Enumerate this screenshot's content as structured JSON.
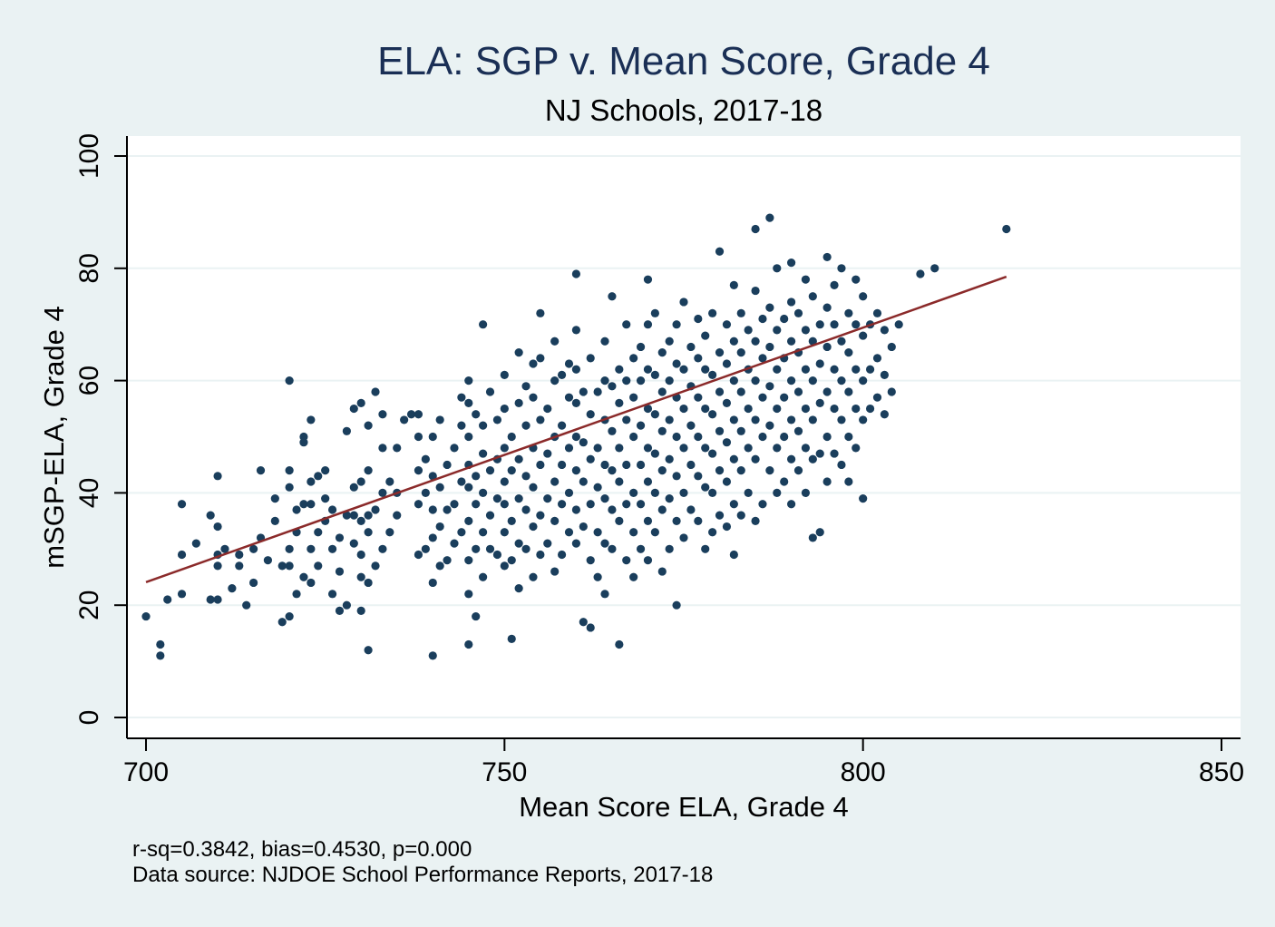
{
  "chart_data": {
    "type": "scatter",
    "title": "ELA: SGP v. Mean Score, Grade 4",
    "subtitle": "NJ Schools, 2017-18",
    "xlabel": "Mean Score ELA, Grade 4",
    "ylabel": "mSGP-ELA, Grade 4",
    "xlim": [
      700,
      850
    ],
    "ylim": [
      0,
      100
    ],
    "x_ticks": [
      "700",
      "750",
      "800",
      "850"
    ],
    "y_ticks": [
      "0",
      "20",
      "40",
      "60",
      "80",
      "100"
    ],
    "grid": "horizontal",
    "colors": {
      "points": "#1a3e5c",
      "fit_line": "#8b2a2a",
      "title": "#1a2f55",
      "background": "#eaf2f3",
      "plot_background": "#ffffff"
    },
    "fit_line": {
      "x": [
        700,
        820
      ],
      "y": [
        24.1,
        78.5
      ]
    },
    "notes": [
      "r-sq=0.3842, bias=0.4530, p=0.000",
      "Data source: NJDOE School Performance Reports, 2017-18"
    ],
    "points": [
      [
        700,
        18
      ],
      [
        702,
        13
      ],
      [
        702,
        11
      ],
      [
        703,
        21
      ],
      [
        705,
        22
      ],
      [
        705,
        29
      ],
      [
        705,
        38
      ],
      [
        707,
        31
      ],
      [
        709,
        21
      ],
      [
        709,
        36
      ],
      [
        710,
        21
      ],
      [
        710,
        27
      ],
      [
        710,
        29
      ],
      [
        710,
        34
      ],
      [
        710,
        43
      ],
      [
        711,
        30
      ],
      [
        712,
        23
      ],
      [
        713,
        27
      ],
      [
        713,
        29
      ],
      [
        714,
        20
      ],
      [
        715,
        24
      ],
      [
        715,
        30
      ],
      [
        716,
        32
      ],
      [
        716,
        44
      ],
      [
        717,
        28
      ],
      [
        718,
        35
      ],
      [
        718,
        39
      ],
      [
        719,
        17
      ],
      [
        719,
        27
      ],
      [
        720,
        18
      ],
      [
        720,
        27
      ],
      [
        720,
        30
      ],
      [
        720,
        41
      ],
      [
        720,
        44
      ],
      [
        720,
        60
      ],
      [
        721,
        22
      ],
      [
        721,
        33
      ],
      [
        721,
        37
      ],
      [
        722,
        25
      ],
      [
        722,
        38
      ],
      [
        722,
        49
      ],
      [
        722,
        50
      ],
      [
        723,
        24
      ],
      [
        723,
        30
      ],
      [
        723,
        38
      ],
      [
        723,
        42
      ],
      [
        723,
        53
      ],
      [
        724,
        27
      ],
      [
        724,
        33
      ],
      [
        724,
        43
      ],
      [
        725,
        35
      ],
      [
        725,
        39
      ],
      [
        725,
        44
      ],
      [
        726,
        22
      ],
      [
        726,
        30
      ],
      [
        726,
        37
      ],
      [
        727,
        19
      ],
      [
        727,
        26
      ],
      [
        727,
        32
      ],
      [
        728,
        20
      ],
      [
        728,
        36
      ],
      [
        728,
        51
      ],
      [
        729,
        31
      ],
      [
        729,
        36
      ],
      [
        729,
        41
      ],
      [
        729,
        55
      ],
      [
        730,
        19
      ],
      [
        730,
        25
      ],
      [
        730,
        29
      ],
      [
        730,
        35
      ],
      [
        730,
        42
      ],
      [
        730,
        56
      ],
      [
        731,
        12
      ],
      [
        731,
        24
      ],
      [
        731,
        33
      ],
      [
        731,
        36
      ],
      [
        731,
        44
      ],
      [
        731,
        52
      ],
      [
        732,
        27
      ],
      [
        732,
        37
      ],
      [
        732,
        58
      ],
      [
        733,
        30
      ],
      [
        733,
        40
      ],
      [
        733,
        48
      ],
      [
        733,
        54
      ],
      [
        734,
        33
      ],
      [
        734,
        42
      ],
      [
        735,
        36
      ],
      [
        735,
        40
      ],
      [
        735,
        48
      ],
      [
        736,
        53
      ],
      [
        737,
        54
      ],
      [
        738,
        29
      ],
      [
        738,
        38
      ],
      [
        738,
        44
      ],
      [
        738,
        50
      ],
      [
        738,
        54
      ],
      [
        739,
        30
      ],
      [
        739,
        40
      ],
      [
        739,
        46
      ],
      [
        740,
        11
      ],
      [
        740,
        24
      ],
      [
        740,
        32
      ],
      [
        740,
        37
      ],
      [
        740,
        43
      ],
      [
        740,
        50
      ],
      [
        741,
        27
      ],
      [
        741,
        34
      ],
      [
        741,
        41
      ],
      [
        741,
        53
      ],
      [
        742,
        28
      ],
      [
        742,
        37
      ],
      [
        742,
        45
      ],
      [
        743,
        31
      ],
      [
        743,
        38
      ],
      [
        743,
        48
      ],
      [
        744,
        33
      ],
      [
        744,
        42
      ],
      [
        744,
        52
      ],
      [
        744,
        57
      ],
      [
        745,
        13
      ],
      [
        745,
        22
      ],
      [
        745,
        28
      ],
      [
        745,
        35
      ],
      [
        745,
        41
      ],
      [
        745,
        45
      ],
      [
        745,
        50
      ],
      [
        745,
        56
      ],
      [
        745,
        60
      ],
      [
        746,
        18
      ],
      [
        746,
        30
      ],
      [
        746,
        38
      ],
      [
        746,
        43
      ],
      [
        746,
        54
      ],
      [
        747,
        25
      ],
      [
        747,
        33
      ],
      [
        747,
        40
      ],
      [
        747,
        47
      ],
      [
        747,
        52
      ],
      [
        747,
        70
      ],
      [
        748,
        30
      ],
      [
        748,
        36
      ],
      [
        748,
        44
      ],
      [
        748,
        58
      ],
      [
        749,
        29
      ],
      [
        749,
        39
      ],
      [
        749,
        46
      ],
      [
        749,
        53
      ],
      [
        750,
        27
      ],
      [
        750,
        33
      ],
      [
        750,
        38
      ],
      [
        750,
        42
      ],
      [
        750,
        48
      ],
      [
        750,
        55
      ],
      [
        750,
        61
      ],
      [
        751,
        14
      ],
      [
        751,
        28
      ],
      [
        751,
        35
      ],
      [
        751,
        44
      ],
      [
        751,
        50
      ],
      [
        752,
        23
      ],
      [
        752,
        31
      ],
      [
        752,
        39
      ],
      [
        752,
        46
      ],
      [
        752,
        56
      ],
      [
        752,
        65
      ],
      [
        753,
        30
      ],
      [
        753,
        37
      ],
      [
        753,
        43
      ],
      [
        753,
        52
      ],
      [
        753,
        59
      ],
      [
        754,
        25
      ],
      [
        754,
        34
      ],
      [
        754,
        41
      ],
      [
        754,
        48
      ],
      [
        754,
        57
      ],
      [
        754,
        63
      ],
      [
        755,
        29
      ],
      [
        755,
        36
      ],
      [
        755,
        45
      ],
      [
        755,
        53
      ],
      [
        755,
        64
      ],
      [
        755,
        72
      ],
      [
        756,
        31
      ],
      [
        756,
        39
      ],
      [
        756,
        47
      ],
      [
        756,
        55
      ],
      [
        757,
        26
      ],
      [
        757,
        35
      ],
      [
        757,
        42
      ],
      [
        757,
        50
      ],
      [
        757,
        60
      ],
      [
        757,
        67
      ],
      [
        758,
        29
      ],
      [
        758,
        38
      ],
      [
        758,
        45
      ],
      [
        758,
        52
      ],
      [
        758,
        61
      ],
      [
        759,
        33
      ],
      [
        759,
        40
      ],
      [
        759,
        48
      ],
      [
        759,
        57
      ],
      [
        759,
        63
      ],
      [
        760,
        31
      ],
      [
        760,
        37
      ],
      [
        760,
        44
      ],
      [
        760,
        50
      ],
      [
        760,
        56
      ],
      [
        760,
        62
      ],
      [
        760,
        69
      ],
      [
        760,
        79
      ],
      [
        761,
        17
      ],
      [
        761,
        34
      ],
      [
        761,
        42
      ],
      [
        761,
        49
      ],
      [
        761,
        58
      ],
      [
        762,
        16
      ],
      [
        762,
        28
      ],
      [
        762,
        38
      ],
      [
        762,
        46
      ],
      [
        762,
        54
      ],
      [
        762,
        64
      ],
      [
        763,
        25
      ],
      [
        763,
        33
      ],
      [
        763,
        41
      ],
      [
        763,
        48
      ],
      [
        763,
        58
      ],
      [
        764,
        22
      ],
      [
        764,
        31
      ],
      [
        764,
        39
      ],
      [
        764,
        45
      ],
      [
        764,
        53
      ],
      [
        764,
        60
      ],
      [
        764,
        67
      ],
      [
        765,
        30
      ],
      [
        765,
        37
      ],
      [
        765,
        44
      ],
      [
        765,
        51
      ],
      [
        765,
        59
      ],
      [
        765,
        75
      ],
      [
        766,
        13
      ],
      [
        766,
        35
      ],
      [
        766,
        42
      ],
      [
        766,
        48
      ],
      [
        766,
        56
      ],
      [
        766,
        62
      ],
      [
        767,
        28
      ],
      [
        767,
        38
      ],
      [
        767,
        45
      ],
      [
        767,
        53
      ],
      [
        767,
        60
      ],
      [
        767,
        70
      ],
      [
        768,
        25
      ],
      [
        768,
        33
      ],
      [
        768,
        40
      ],
      [
        768,
        50
      ],
      [
        768,
        57
      ],
      [
        768,
        64
      ],
      [
        769,
        30
      ],
      [
        769,
        38
      ],
      [
        769,
        45
      ],
      [
        769,
        52
      ],
      [
        769,
        60
      ],
      [
        769,
        66
      ],
      [
        770,
        28
      ],
      [
        770,
        35
      ],
      [
        770,
        42
      ],
      [
        770,
        48
      ],
      [
        770,
        55
      ],
      [
        770,
        62
      ],
      [
        770,
        70
      ],
      [
        770,
        78
      ],
      [
        771,
        33
      ],
      [
        771,
        40
      ],
      [
        771,
        47
      ],
      [
        771,
        54
      ],
      [
        771,
        61
      ],
      [
        771,
        72
      ],
      [
        772,
        26
      ],
      [
        772,
        37
      ],
      [
        772,
        44
      ],
      [
        772,
        51
      ],
      [
        772,
        58
      ],
      [
        772,
        65
      ],
      [
        773,
        30
      ],
      [
        773,
        39
      ],
      [
        773,
        46
      ],
      [
        773,
        53
      ],
      [
        773,
        60
      ],
      [
        773,
        67
      ],
      [
        774,
        20
      ],
      [
        774,
        35
      ],
      [
        774,
        43
      ],
      [
        774,
        50
      ],
      [
        774,
        57
      ],
      [
        774,
        63
      ],
      [
        774,
        70
      ],
      [
        775,
        32
      ],
      [
        775,
        40
      ],
      [
        775,
        48
      ],
      [
        775,
        55
      ],
      [
        775,
        62
      ],
      [
        775,
        74
      ],
      [
        776,
        37
      ],
      [
        776,
        45
      ],
      [
        776,
        52
      ],
      [
        776,
        59
      ],
      [
        776,
        66
      ],
      [
        777,
        35
      ],
      [
        777,
        43
      ],
      [
        777,
        50
      ],
      [
        777,
        57
      ],
      [
        777,
        64
      ],
      [
        777,
        71
      ],
      [
        778,
        30
      ],
      [
        778,
        41
      ],
      [
        778,
        48
      ],
      [
        778,
        55
      ],
      [
        778,
        62
      ],
      [
        778,
        68
      ],
      [
        779,
        33
      ],
      [
        779,
        40
      ],
      [
        779,
        47
      ],
      [
        779,
        54
      ],
      [
        779,
        61
      ],
      [
        779,
        72
      ],
      [
        780,
        36
      ],
      [
        780,
        44
      ],
      [
        780,
        51
      ],
      [
        780,
        58
      ],
      [
        780,
        65
      ],
      [
        780,
        83
      ],
      [
        781,
        34
      ],
      [
        781,
        42
      ],
      [
        781,
        49
      ],
      [
        781,
        56
      ],
      [
        781,
        63
      ],
      [
        781,
        70
      ],
      [
        782,
        29
      ],
      [
        782,
        38
      ],
      [
        782,
        46
      ],
      [
        782,
        53
      ],
      [
        782,
        60
      ],
      [
        782,
        67
      ],
      [
        782,
        77
      ],
      [
        783,
        36
      ],
      [
        783,
        44
      ],
      [
        783,
        51
      ],
      [
        783,
        58
      ],
      [
        783,
        65
      ],
      [
        783,
        72
      ],
      [
        784,
        40
      ],
      [
        784,
        48
      ],
      [
        784,
        55
      ],
      [
        784,
        62
      ],
      [
        784,
        69
      ],
      [
        785,
        35
      ],
      [
        785,
        46
      ],
      [
        785,
        53
      ],
      [
        785,
        60
      ],
      [
        785,
        67
      ],
      [
        785,
        76
      ],
      [
        785,
        87
      ],
      [
        786,
        38
      ],
      [
        786,
        50
      ],
      [
        786,
        57
      ],
      [
        786,
        64
      ],
      [
        786,
        71
      ],
      [
        787,
        44
      ],
      [
        787,
        52
      ],
      [
        787,
        59
      ],
      [
        787,
        66
      ],
      [
        787,
        73
      ],
      [
        787,
        89
      ],
      [
        788,
        40
      ],
      [
        788,
        48
      ],
      [
        788,
        55
      ],
      [
        788,
        62
      ],
      [
        788,
        69
      ],
      [
        788,
        80
      ],
      [
        789,
        42
      ],
      [
        789,
        50
      ],
      [
        789,
        57
      ],
      [
        789,
        64
      ],
      [
        789,
        71
      ],
      [
        790,
        38
      ],
      [
        790,
        46
      ],
      [
        790,
        53
      ],
      [
        790,
        60
      ],
      [
        790,
        67
      ],
      [
        790,
        74
      ],
      [
        790,
        81
      ],
      [
        791,
        44
      ],
      [
        791,
        51
      ],
      [
        791,
        58
      ],
      [
        791,
        65
      ],
      [
        791,
        72
      ],
      [
        792,
        40
      ],
      [
        792,
        48
      ],
      [
        792,
        55
      ],
      [
        792,
        62
      ],
      [
        792,
        69
      ],
      [
        792,
        78
      ],
      [
        793,
        32
      ],
      [
        793,
        46
      ],
      [
        793,
        53
      ],
      [
        793,
        60
      ],
      [
        793,
        67
      ],
      [
        793,
        75
      ],
      [
        794,
        33
      ],
      [
        794,
        47
      ],
      [
        794,
        56
      ],
      [
        794,
        63
      ],
      [
        794,
        70
      ],
      [
        795,
        42
      ],
      [
        795,
        50
      ],
      [
        795,
        58
      ],
      [
        795,
        66
      ],
      [
        795,
        73
      ],
      [
        795,
        82
      ],
      [
        796,
        47
      ],
      [
        796,
        55
      ],
      [
        796,
        62
      ],
      [
        796,
        70
      ],
      [
        796,
        77
      ],
      [
        797,
        45
      ],
      [
        797,
        53
      ],
      [
        797,
        60
      ],
      [
        797,
        67
      ],
      [
        797,
        80
      ],
      [
        798,
        42
      ],
      [
        798,
        50
      ],
      [
        798,
        58
      ],
      [
        798,
        65
      ],
      [
        798,
        72
      ],
      [
        799,
        48
      ],
      [
        799,
        55
      ],
      [
        799,
        62
      ],
      [
        799,
        70
      ],
      [
        799,
        78
      ],
      [
        800,
        39
      ],
      [
        800,
        53
      ],
      [
        800,
        60
      ],
      [
        800,
        68
      ],
      [
        800,
        75
      ],
      [
        801,
        55
      ],
      [
        801,
        62
      ],
      [
        801,
        70
      ],
      [
        802,
        57
      ],
      [
        802,
        64
      ],
      [
        802,
        72
      ],
      [
        803,
        54
      ],
      [
        803,
        61
      ],
      [
        803,
        69
      ],
      [
        804,
        58
      ],
      [
        804,
        66
      ],
      [
        805,
        70
      ],
      [
        808,
        79
      ],
      [
        810,
        80
      ],
      [
        820,
        87
      ]
    ]
  }
}
